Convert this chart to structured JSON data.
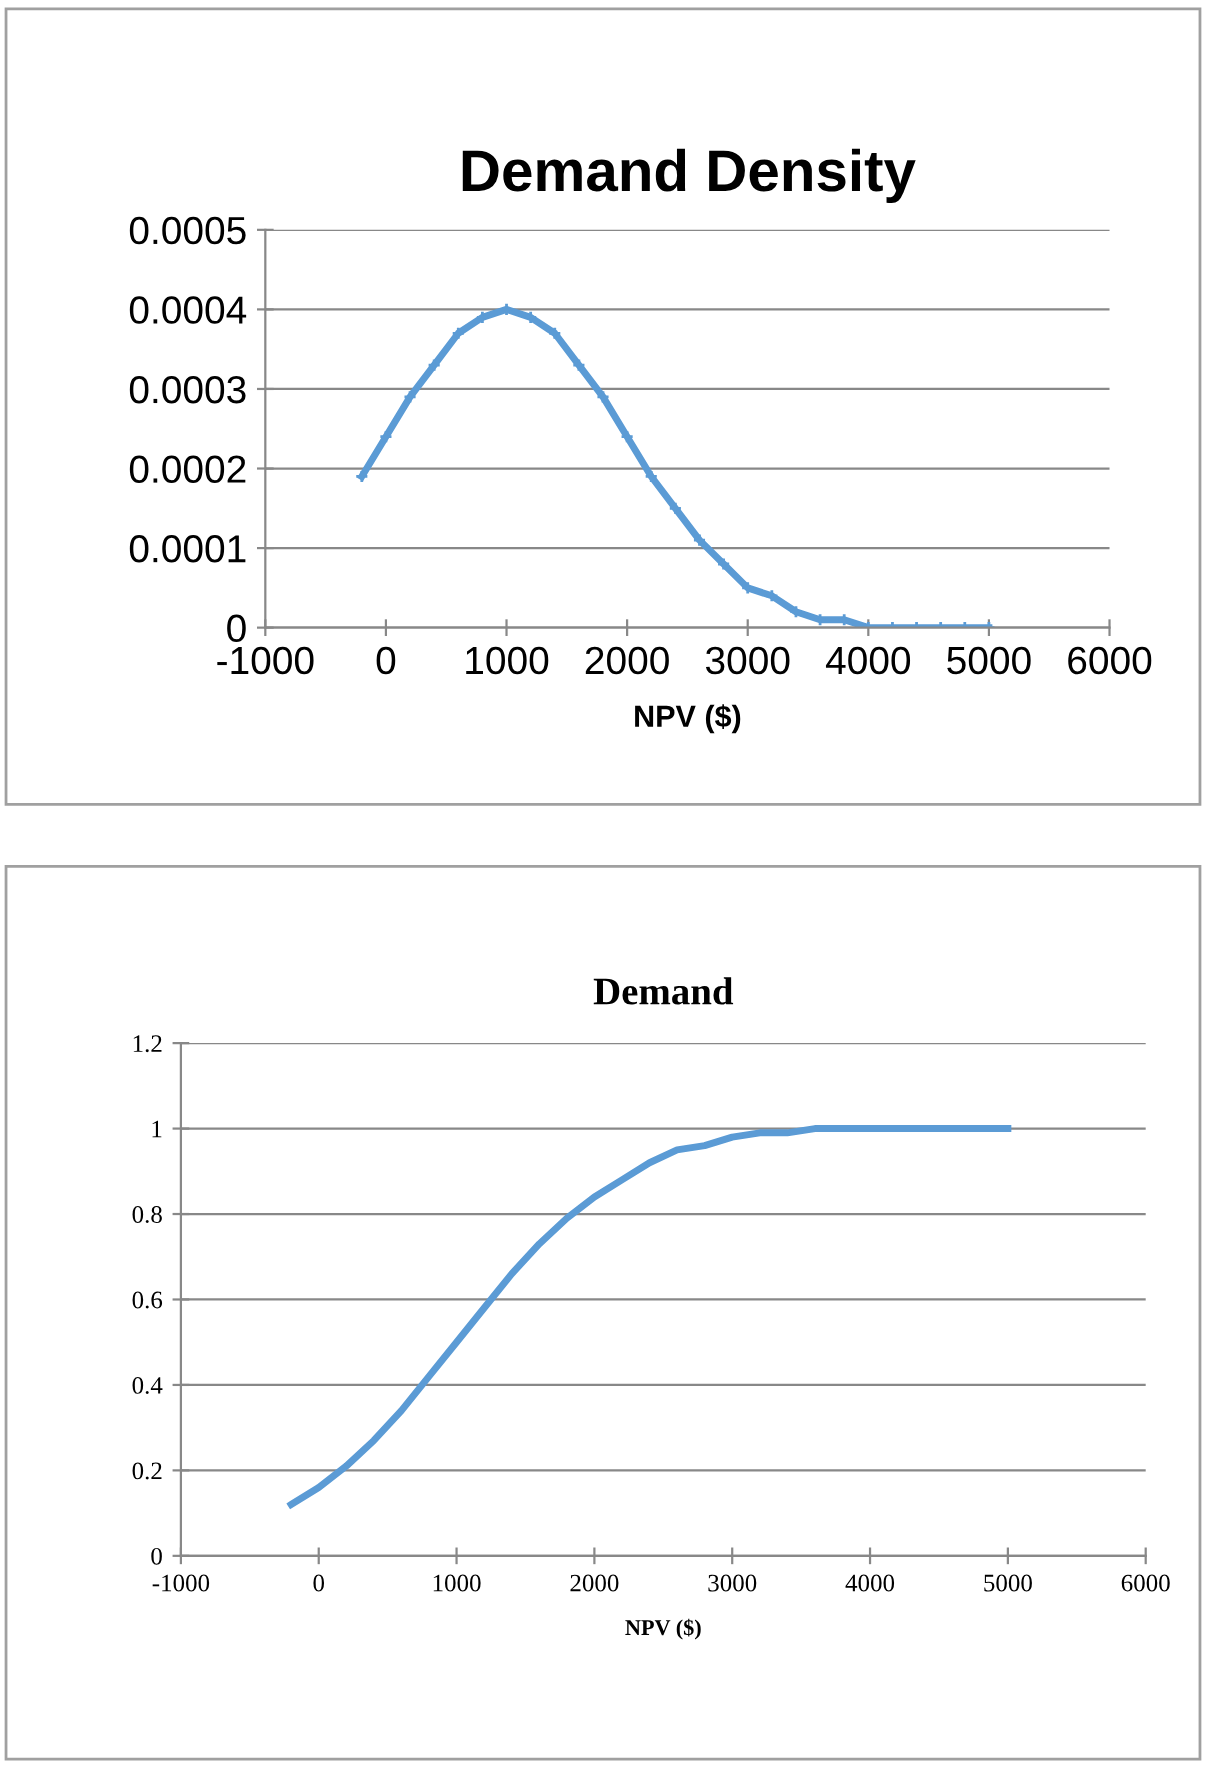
{
  "chart_data": [
    {
      "type": "line",
      "title": "Demand Density",
      "xlabel": "NPV ($)",
      "x": [
        -200,
        0,
        200,
        400,
        600,
        800,
        1000,
        1200,
        1400,
        1600,
        1800,
        2000,
        2200,
        2400,
        2600,
        2800,
        3000,
        3200,
        3400,
        3600,
        3800,
        4000,
        4200,
        4400,
        4600,
        4800,
        5000
      ],
      "series": [
        {
          "color": "#5b9bd5",
          "values": [
            0.00019,
            0.00024,
            0.00029,
            0.00033,
            0.00037,
            0.00039,
            0.0004,
            0.00039,
            0.00037,
            0.00033,
            0.00029,
            0.00024,
            0.00019,
            0.00015,
            0.00011,
            8e-05,
            5e-05,
            4e-05,
            2e-05,
            1e-05,
            1e-05,
            0,
            0,
            0,
            0,
            0,
            0
          ]
        }
      ],
      "xlim": [
        -1000,
        6000
      ],
      "xticks": [
        -1000,
        0,
        1000,
        2000,
        3000,
        4000,
        5000,
        6000
      ],
      "ylim": [
        0,
        0.0005
      ],
      "yticks": [
        {
          "value": 0,
          "label": "0"
        },
        0.0001,
        0.0002,
        0.0003,
        0.0004,
        0.0005
      ],
      "grid": "y",
      "marker": "cross",
      "line_style": "solid",
      "legend": false
    },
    {
      "type": "line",
      "title": "Demand",
      "xlabel": "NPV ($)",
      "x": [
        -200,
        0,
        200,
        400,
        600,
        800,
        1000,
        1200,
        1400,
        1600,
        1800,
        2000,
        2200,
        2400,
        2600,
        2800,
        3000,
        3200,
        3400,
        3600,
        3800,
        4000,
        4200,
        4400,
        4600,
        4800,
        5000
      ],
      "series": [
        {
          "color": "#5b9bd5",
          "values": [
            0.12,
            0.16,
            0.21,
            0.27,
            0.34,
            0.42,
            0.5,
            0.58,
            0.66,
            0.73,
            0.79,
            0.84,
            0.88,
            0.92,
            0.95,
            0.96,
            0.98,
            0.99,
            0.99,
            1,
            1,
            1,
            1,
            1,
            1,
            1,
            1
          ]
        }
      ],
      "xlim": [
        -1000,
        6000
      ],
      "xticks": [
        -1000,
        0,
        1000,
        2000,
        3000,
        4000,
        5000,
        6000
      ],
      "ylim": [
        0,
        1.2
      ],
      "yticks": [
        0,
        0.2,
        0.4,
        0.6,
        0.8,
        1,
        1.2
      ],
      "grid": "y",
      "marker": "none",
      "line_style": "solid",
      "legend": false
    }
  ]
}
